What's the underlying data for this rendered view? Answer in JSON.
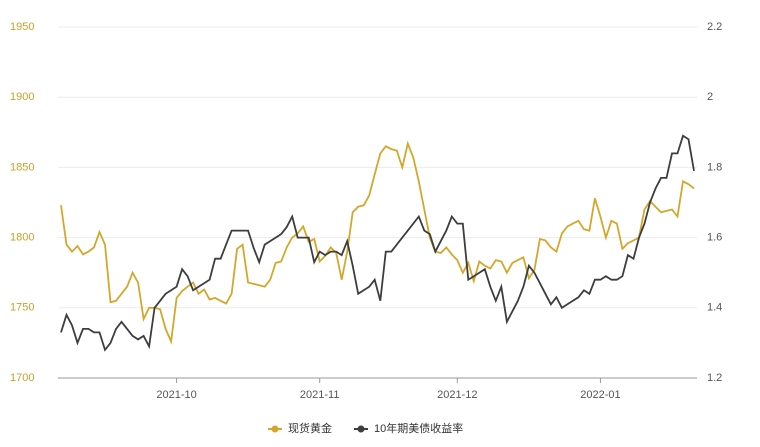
{
  "chart_data": {
    "type": "line",
    "categories": [
      null,
      null,
      null,
      null,
      null,
      null,
      null,
      null,
      null,
      null,
      null,
      null,
      null,
      null,
      null,
      null,
      null,
      null,
      null,
      null,
      null,
      "2021-10",
      null,
      null,
      null,
      null,
      null,
      null,
      null,
      null,
      null,
      null,
      null,
      null,
      null,
      null,
      null,
      null,
      null,
      null,
      null,
      null,
      null,
      null,
      null,
      null,
      null,
      "2021-11",
      null,
      null,
      null,
      null,
      null,
      null,
      null,
      null,
      null,
      null,
      null,
      null,
      null,
      null,
      null,
      null,
      null,
      null,
      null,
      null,
      null,
      null,
      null,
      null,
      "2021-12",
      null,
      null,
      null,
      null,
      null,
      null,
      null,
      null,
      null,
      null,
      null,
      null,
      null,
      null,
      null,
      null,
      null,
      null,
      null,
      null,
      null,
      null,
      null,
      null,
      null,
      "2022-01",
      null,
      null,
      null,
      null,
      null,
      null,
      null,
      null,
      null,
      null,
      null,
      null,
      null,
      null,
      null,
      null,
      null
    ],
    "series": [
      {
        "name": "现货黄金",
        "color": "#d4a72c",
        "axis": "y",
        "values": [
          1823,
          1795,
          1790,
          1794,
          1788,
          1790,
          1793,
          1804,
          1795,
          1754,
          1755,
          1760,
          1765,
          1775,
          1768,
          1742,
          1750,
          1750,
          1749,
          1735,
          1726,
          1757,
          1762,
          1765,
          1768,
          1760,
          1763,
          1756,
          1757,
          1755,
          1753,
          1760,
          1792,
          1795,
          1768,
          1767,
          1766,
          1765,
          1770,
          1782,
          1783,
          1793,
          1800,
          1803,
          1808,
          1797,
          1799,
          1783,
          1787,
          1793,
          1789,
          1770,
          1790,
          1818,
          1822,
          1823,
          1830,
          1845,
          1860,
          1865,
          1863,
          1862,
          1850,
          1867,
          1857,
          1840,
          1820,
          1800,
          1790,
          1789,
          1793,
          1788,
          1784,
          1775,
          1782,
          1769,
          1783,
          1780,
          1778,
          1784,
          1783,
          1775,
          1782,
          1784,
          1786,
          1771,
          1777,
          1799,
          1798,
          1793,
          1790,
          1803,
          1808,
          1810,
          1812,
          1806,
          1805,
          1828,
          1815,
          1800,
          1812,
          1810,
          1792,
          1796,
          1798,
          1800,
          1820,
          1826,
          1822,
          1818,
          1819,
          1820,
          1815,
          1840,
          1838,
          1835
        ]
      },
      {
        "name": "10年期美债收益率",
        "color": "#3d3d3d",
        "axis": "y2",
        "values": [
          1.33,
          1.38,
          1.35,
          1.3,
          1.34,
          1.34,
          1.33,
          1.33,
          1.28,
          1.3,
          1.34,
          1.36,
          1.34,
          1.32,
          1.31,
          1.32,
          1.29,
          1.4,
          1.42,
          1.44,
          1.45,
          1.46,
          1.51,
          1.49,
          1.45,
          1.46,
          1.47,
          1.48,
          1.54,
          1.54,
          1.58,
          1.62,
          1.62,
          1.62,
          1.62,
          1.57,
          1.53,
          1.58,
          1.59,
          1.6,
          1.61,
          1.63,
          1.66,
          1.6,
          1.6,
          1.6,
          1.53,
          1.56,
          1.55,
          1.56,
          1.56,
          1.55,
          1.59,
          1.52,
          1.44,
          1.45,
          1.46,
          1.48,
          1.42,
          1.56,
          1.56,
          1.58,
          1.6,
          1.62,
          1.64,
          1.66,
          1.62,
          1.61,
          1.56,
          1.59,
          1.62,
          1.66,
          1.64,
          1.64,
          1.48,
          1.49,
          1.5,
          1.51,
          1.46,
          1.42,
          1.46,
          1.36,
          1.39,
          1.42,
          1.46,
          1.52,
          1.5,
          1.47,
          1.44,
          1.41,
          1.43,
          1.4,
          1.41,
          1.42,
          1.43,
          1.45,
          1.44,
          1.48,
          1.48,
          1.49,
          1.48,
          1.48,
          1.49,
          1.55,
          1.54,
          1.6,
          1.64,
          1.7,
          1.74,
          1.77,
          1.77,
          1.84,
          1.84,
          1.89,
          1.88,
          1.79
        ]
      }
    ],
    "ylim": [
      1700,
      1950
    ],
    "yticks": [
      1700,
      1750,
      1800,
      1850,
      1900,
      1950
    ],
    "y2lim": [
      1.2,
      2.2
    ],
    "y2ticks": [
      1.2,
      1.4,
      1.6,
      1.8,
      2,
      2.2
    ],
    "grid": true,
    "legend": "bottom"
  }
}
